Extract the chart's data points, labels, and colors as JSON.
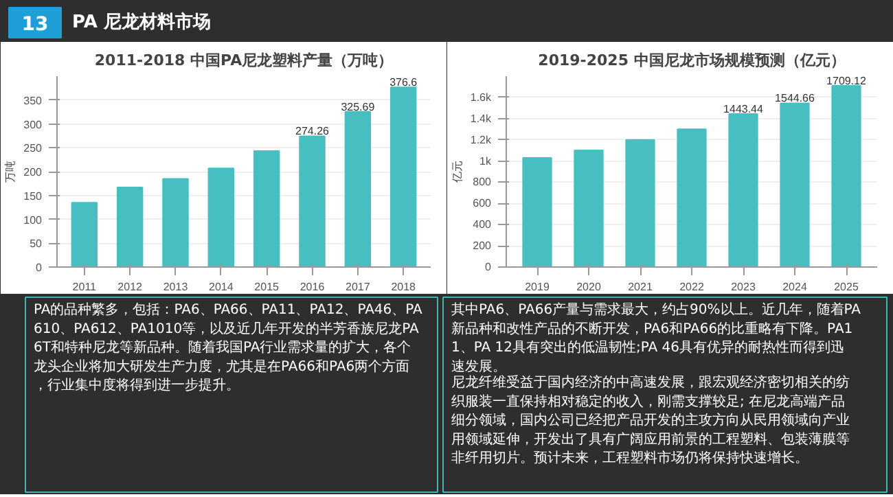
{
  "chart_data": [
    {
      "type": "other",
      "title": "PA 尼龙材料市场",
      "annotations": [
        "13"
      ]
    },
    {
      "type": "bar",
      "title": "2011-2018 中国PA尼龙塑料产量（万吨）",
      "ylabel": "万吨",
      "categories": [
        "2011",
        "2012",
        "2013",
        "2014",
        "2015",
        "2016",
        "2017",
        "2018"
      ],
      "series": [
        {
          "color": "#47bfc1",
          "values": [
            135,
            167,
            185,
            207,
            243,
            274.26,
            325.69,
            376.6
          ]
        }
      ],
      "value_labels": [
        null,
        null,
        null,
        null,
        null,
        "274.26",
        "325.69",
        "376.6"
      ],
      "ylim": [
        0,
        400
      ],
      "yticks": [
        0,
        50,
        100,
        150,
        200,
        250,
        300,
        350
      ],
      "grid": "y"
    },
    {
      "type": "bar",
      "title": "2019-2025 中国尼龙市场规模预测（亿元）",
      "ylabel": "亿元",
      "categories": [
        "2019",
        "2020",
        "2021",
        "2022",
        "2023",
        "2024",
        "2025"
      ],
      "series": [
        {
          "color": "#47bfc1",
          "values": [
            1030,
            1100,
            1200,
            1300,
            1443.44,
            1544.66,
            1709.12
          ]
        }
      ],
      "value_labels": [
        null,
        null,
        null,
        null,
        "1443.44",
        "1544.66",
        "1709.12"
      ],
      "ylim": [
        0,
        1800
      ],
      "yticks": [
        0,
        200,
        400,
        600,
        800,
        {
          "value": 1000,
          "label": "1k"
        },
        {
          "value": 1200,
          "label": "1.2k"
        },
        {
          "value": 1400,
          "label": "1.4k"
        },
        {
          "value": 1600,
          "label": "1.6k"
        }
      ],
      "grid": "y"
    },
    {
      "type": "other",
      "annotations": [
        "PA的品种繁多，包括：PA6、PA66、PA11、PA12、PA46、PA610、PA612、PA1010等，以及近几年开发的半芳香族尼龙PA6T和特种尼龙等新品种。随着我国PA行业需求量的扩大，各个龙头企业将加大研发生产力度，尤其是在PA66和PA6两个方面，行业集中度将得到进一步提升。",
        "其中PA6、PA66产量与需求最大，约占90%以上。近几年，随着PA新品种和改性产品的不断开发，PA6和PA66的比重略有下降。PA11、PA 12具有突出的低温韧性;PA 46具有优异的耐热性而得到迅速发展。",
        "尼龙纤维受益于国内经济的中高速发展，跟宏观经济密切相关的纺织服装一直保持相对稳定的收入，刚需支撑较足; 在尼龙高端产品细分领域，国内公司已经把产品开发的主攻方向从民用领域向产业用领域延伸，开发出了具有广阔应用前景的工程塑料、包装薄膜等非纤用切片。预计未来，工程塑料市场仍将保持快速增长。"
      ]
    }
  ]
}
